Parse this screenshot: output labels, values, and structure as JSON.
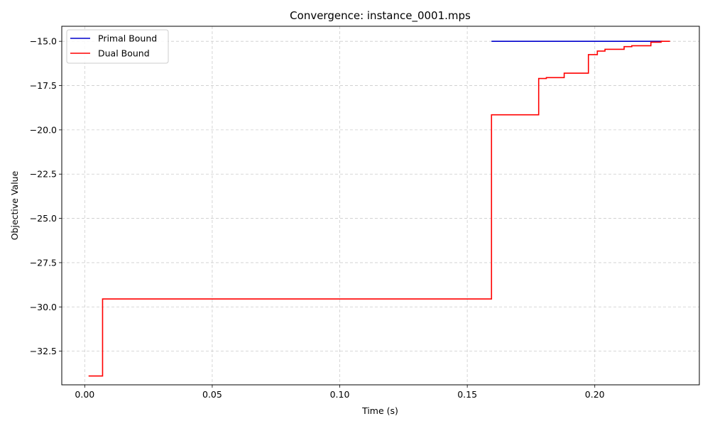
{
  "chart_data": {
    "type": "line",
    "title": "Convergence: instance_0001.mps",
    "xlabel": "Time (s)",
    "ylabel": "Objective Value",
    "xlim": [
      -0.009,
      0.241
    ],
    "ylim": [
      -34.4,
      -14.15
    ],
    "xticks": [
      0.0,
      0.05,
      0.1,
      0.15,
      0.2
    ],
    "xtick_labels": [
      "0.00",
      "0.05",
      "0.10",
      "0.15",
      "0.20"
    ],
    "yticks": [
      -32.5,
      -30.0,
      -27.5,
      -25.0,
      -22.5,
      -20.0,
      -17.5,
      -15.0
    ],
    "ytick_labels": [
      "−32.5",
      "−30.0",
      "−27.5",
      "−25.0",
      "−22.5",
      "−20.0",
      "−17.5",
      "−15.0"
    ],
    "grid": true,
    "legend_position": "top-left",
    "series": [
      {
        "name": "Primal Bound",
        "color": "#0000cc",
        "step": true,
        "x": [
          0.1595,
          0.2265
        ],
        "y": [
          -15.0,
          -15.0
        ]
      },
      {
        "name": "Dual Bound",
        "color": "#ff0000",
        "step": true,
        "x": [
          0.0015,
          0.007,
          0.1595,
          0.178,
          0.181,
          0.188,
          0.1975,
          0.201,
          0.204,
          0.2115,
          0.2145,
          0.222,
          0.226,
          0.2295
        ],
        "y": [
          -33.9,
          -29.55,
          -19.15,
          -17.1,
          -17.05,
          -16.8,
          -15.75,
          -15.55,
          -15.45,
          -15.3,
          -15.25,
          -15.05,
          -15.0,
          -15.0
        ]
      }
    ]
  }
}
